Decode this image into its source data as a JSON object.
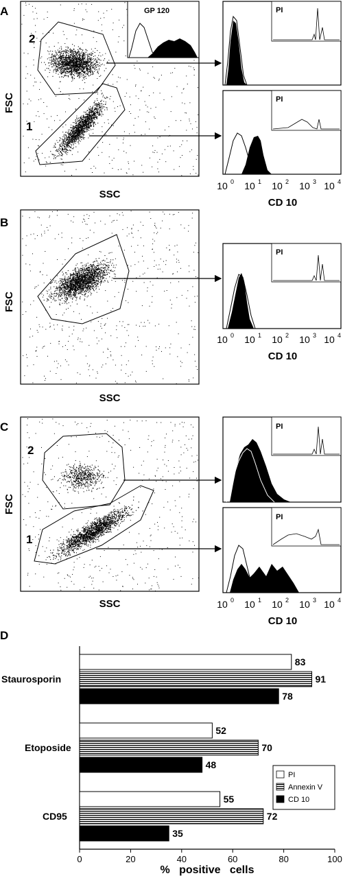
{
  "panels": {
    "A": {
      "letter": "A",
      "scatter": {
        "y_label": "FSC",
        "x_label": "SSC",
        "gate_labels": [
          "2",
          "1"
        ]
      },
      "inset": {
        "label": "GP 120"
      },
      "histograms": [
        {
          "inset_label": "PI"
        },
        {
          "inset_label": "PI",
          "x_label": "CD 10"
        }
      ]
    },
    "B": {
      "letter": "B",
      "scatter": {
        "y_label": "FSC",
        "x_label": "SSC"
      },
      "histograms": [
        {
          "inset_label": "PI",
          "x_label": "CD 10"
        }
      ]
    },
    "C": {
      "letter": "C",
      "scatter": {
        "y_label": "FSC",
        "x_label": "SSC",
        "gate_labels": [
          "2",
          "1"
        ]
      },
      "histograms": [
        {
          "inset_label": "PI"
        },
        {
          "inset_label": "PI",
          "x_label": "CD 10"
        }
      ]
    },
    "log_ticks": [
      {
        "base": "10",
        "exp": "0"
      },
      {
        "base": "10",
        "exp": "1"
      },
      {
        "base": "10",
        "exp": "2"
      },
      {
        "base": "10",
        "exp": "3"
      },
      {
        "base": "10",
        "exp": "4"
      }
    ]
  },
  "chart_data": {
    "type": "bar",
    "panel_letter": "D",
    "orientation": "horizontal",
    "categories": [
      "Staurosporin",
      "Etoposide",
      "CD95"
    ],
    "series": [
      {
        "name": "PI",
        "values": [
          83,
          52,
          55
        ],
        "pattern": "white"
      },
      {
        "name": "Annexin V",
        "values": [
          91,
          70,
          72
        ],
        "pattern": "horizontal-stripes"
      },
      {
        "name": "CD  10",
        "values": [
          78,
          48,
          35
        ],
        "pattern": "black"
      }
    ],
    "xlabel": "%   positive   cells",
    "xlim": [
      0,
      100
    ],
    "xticks": [
      "0",
      "20",
      "40",
      "60",
      "80",
      "100"
    ],
    "legend_position": "right-middle"
  },
  "colors": {
    "ink": "#000000",
    "paper": "#ffffff"
  }
}
